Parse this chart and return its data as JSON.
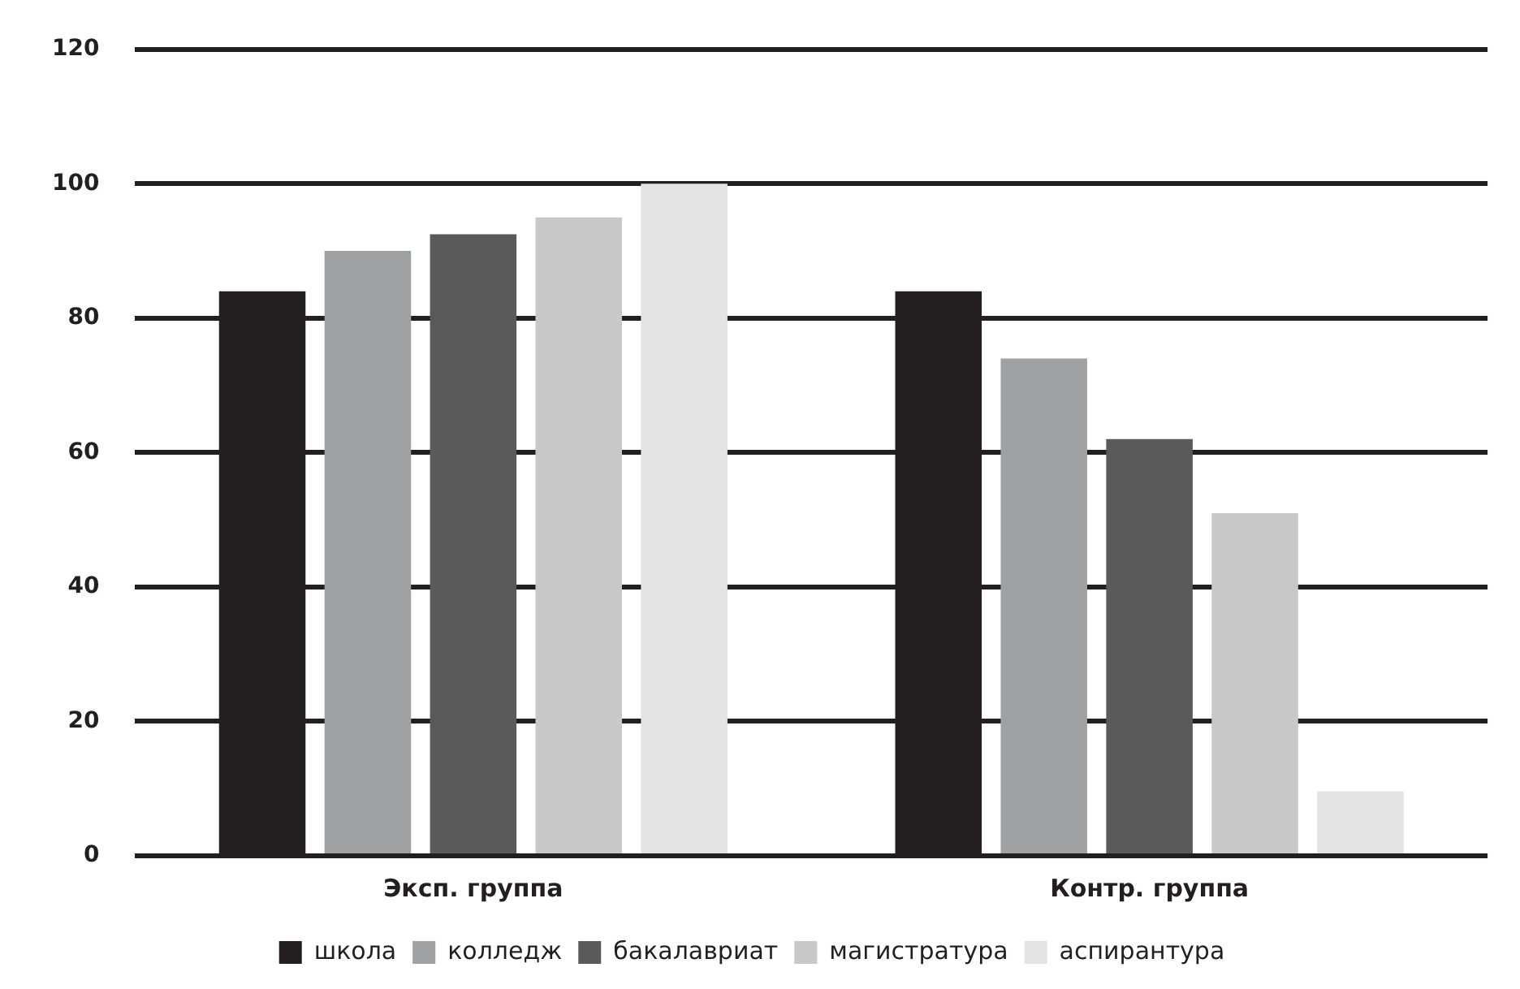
{
  "chart_data": {
    "type": "bar",
    "categories": [
      "Эксп. группа",
      "Контр. группа"
    ],
    "series": [
      {
        "name": "школа",
        "color": "#231f20",
        "values": [
          84,
          84
        ]
      },
      {
        "name": "колледж",
        "color": "#a0a1a3",
        "values": [
          90,
          74
        ]
      },
      {
        "name": "бакалавриат",
        "color": "#5a5a5a",
        "values": [
          92.5,
          62
        ]
      },
      {
        "name": "магистратура",
        "color": "#c8c8c8",
        "values": [
          95,
          51
        ]
      },
      {
        "name": "аспирантура",
        "color": "#e3e3e3",
        "values": [
          100,
          9.6
        ]
      }
    ],
    "ylim": [
      0,
      120
    ],
    "yticks": [
      0,
      20,
      40,
      60,
      80,
      100,
      120
    ],
    "grid": "y",
    "legend": "bottom"
  }
}
